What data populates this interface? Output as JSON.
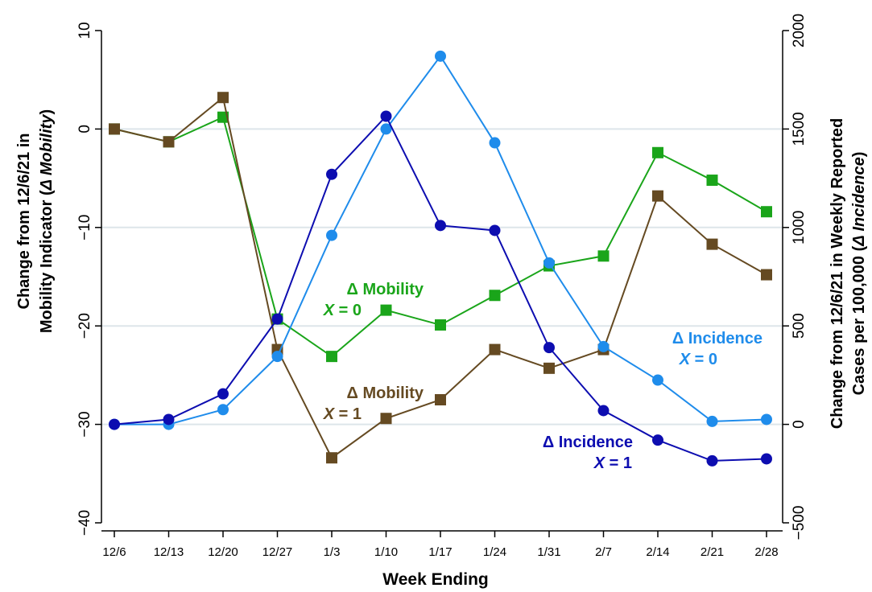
{
  "chart_data": {
    "type": "line",
    "xlabel": "Week Ending",
    "categories": [
      "12/6",
      "12/13",
      "12/20",
      "12/27",
      "1/3",
      "1/10",
      "1/17",
      "1/24",
      "1/31",
      "2/7",
      "2/14",
      "2/21",
      "2/28"
    ],
    "y_left": {
      "label_line1": "Change from 12/6/21 in",
      "label_line2_prefix": "Mobility Indicator (",
      "label_line2_italic": "Δ Mobility",
      "label_line2_suffix": ")",
      "ylim": [
        -40,
        10
      ],
      "ticks": [
        "−40",
        "−30",
        "−20",
        "−10",
        "0",
        "10"
      ]
    },
    "y_right": {
      "label_line1": "Change from 12/6/21 in Weekly Reported",
      "label_line2_prefix": "Cases per 100,000 (",
      "label_line2_italic": "Δ Incidence",
      "label_line2_suffix": ")",
      "ylim": [
        -500,
        2000
      ],
      "ticks": [
        "−500",
        "0",
        "500",
        "1000",
        "1500",
        "2000"
      ]
    },
    "gridlines_left": [
      -30,
      -20,
      -10,
      0
    ],
    "series": [
      {
        "name": "Δ Mobility X = 0",
        "axis": "left",
        "marker": "square",
        "color": "#1aa51a",
        "values": [
          0,
          -1.3,
          1.2,
          -19.3,
          -23.1,
          -18.4,
          -19.9,
          -16.9,
          -13.9,
          -12.9,
          -2.4,
          -5.2,
          -8.4
        ]
      },
      {
        "name": "Δ Mobility X = 1",
        "axis": "left",
        "marker": "square",
        "color": "#654a22",
        "values": [
          0,
          -1.3,
          3.2,
          -22.4,
          -33.4,
          -29.4,
          -27.5,
          -22.4,
          -24.3,
          -22.4,
          -6.8,
          -11.7,
          -14.8
        ]
      },
      {
        "name": "Δ Incidence X = 0",
        "axis": "right",
        "marker": "circle",
        "color": "#1f8ceb",
        "values": [
          0,
          0,
          75,
          345,
          960,
          1500,
          1870,
          1430,
          820,
          395,
          225,
          15,
          25
        ]
      },
      {
        "name": "Δ Incidence X = 1",
        "axis": "right",
        "marker": "circle",
        "color": "#0d0db0",
        "values": [
          0,
          25,
          155,
          535,
          1270,
          1565,
          1010,
          985,
          390,
          70,
          -80,
          -185,
          -175
        ]
      }
    ],
    "annotations": [
      {
        "series": 0,
        "line1": "Δ Mobility",
        "line2_var": "X",
        "line2_rest": " = 0"
      },
      {
        "series": 1,
        "line1": "Δ Mobility",
        "line2_var": "X",
        "line2_rest": " = 1"
      },
      {
        "series": 2,
        "line1": "Δ Incidence",
        "line2_var": "X",
        "line2_rest": " = 0"
      },
      {
        "series": 3,
        "line1": "Δ Incidence",
        "line2_var": "X",
        "line2_rest": " = 1"
      }
    ]
  }
}
